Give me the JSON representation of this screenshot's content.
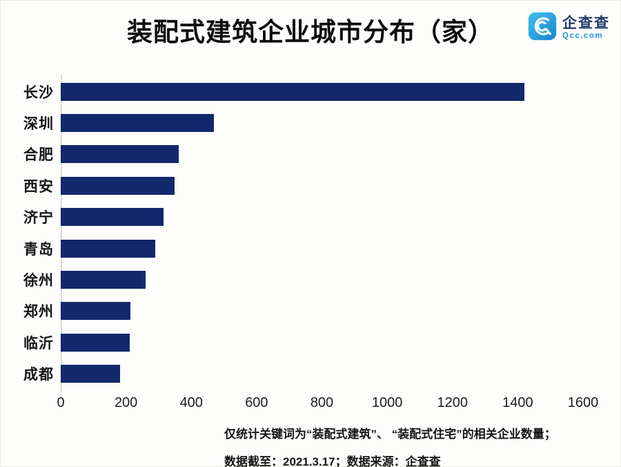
{
  "header": {
    "title": "装配式建筑企业城市分布（家）",
    "logo": {
      "brand": "企查查",
      "domain": "Qcc.com"
    }
  },
  "chart_data": {
    "type": "bar",
    "orientation": "horizontal",
    "title": "装配式建筑企业城市分布（家）",
    "categories": [
      "长沙",
      "深圳",
      "合肥",
      "西安",
      "济宁",
      "青岛",
      "徐州",
      "郑州",
      "临沂",
      "成都"
    ],
    "values": [
      1420,
      469,
      362,
      348,
      315,
      290,
      261,
      213,
      211,
      181
    ],
    "unit": "家",
    "xlabel": "",
    "ylabel": "",
    "xlim": [
      0,
      1600
    ],
    "xticks": [
      0,
      200,
      400,
      600,
      800,
      1000,
      1200,
      1400,
      1600
    ],
    "grid": false,
    "legend_position": "none",
    "bar_color": "#12286B"
  },
  "footer": {
    "note1": "仅统计关键词为“装配式建筑”、 “装配式住宅”的相关企业数量；",
    "note2": "数据截至：2021.3.17；数据来源：企查查"
  },
  "colors": {
    "bar": "#12286B",
    "axis_line": "#d9d9d9",
    "text": "#111111",
    "logo_blue": "#1E97DC",
    "logo_dark": "#223A6E"
  }
}
